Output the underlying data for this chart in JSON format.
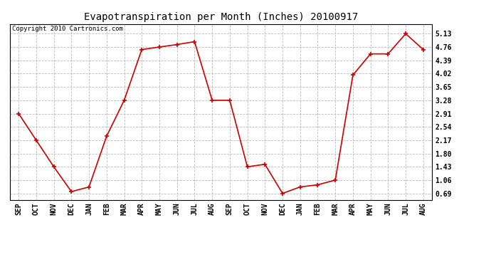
{
  "title": "Evapotranspiration per Month (Inches) 20100917",
  "copyright": "Copyright 2010 Cartronics.com",
  "x_labels": [
    "SEP",
    "OCT",
    "NOV",
    "DEC",
    "JAN",
    "FEB",
    "MAR",
    "APR",
    "MAY",
    "JUN",
    "JUL",
    "AUG",
    "SEP",
    "OCT",
    "NOV",
    "DEC",
    "JAN",
    "FEB",
    "MAR",
    "APR",
    "MAY",
    "JUN",
    "JUL",
    "AUG"
  ],
  "y_values": [
    2.91,
    2.17,
    1.43,
    0.74,
    0.87,
    2.28,
    3.28,
    4.69,
    4.76,
    4.83,
    4.91,
    3.28,
    3.28,
    1.43,
    1.5,
    0.69,
    0.87,
    0.93,
    1.06,
    3.98,
    4.57,
    4.57,
    5.13,
    4.69
  ],
  "line_color": "#cc0000",
  "marker": "+",
  "bg_color": "#ffffff",
  "grid_color": "#bbbbbb",
  "yticks": [
    0.69,
    1.06,
    1.43,
    1.8,
    2.17,
    2.54,
    2.91,
    3.28,
    3.65,
    4.02,
    4.39,
    4.76,
    5.13
  ],
  "ylim": [
    0.5,
    5.4
  ],
  "title_fontsize": 10,
  "tick_fontsize": 7,
  "copyright_fontsize": 6.5
}
